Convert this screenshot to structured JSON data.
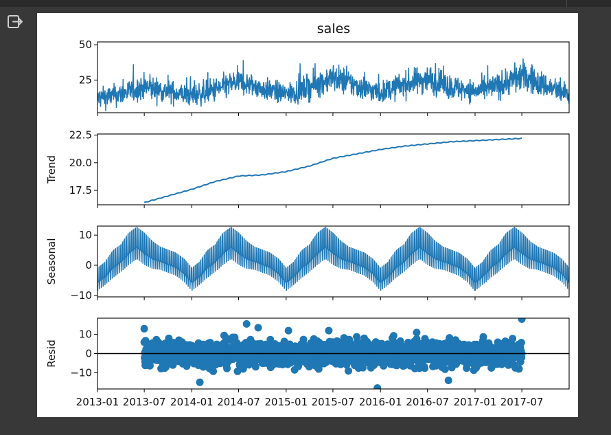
{
  "output_icon": "output-collapse-icon",
  "chart_data": {
    "type": "line",
    "title": "sales",
    "x_tick_labels": [
      "2013-01",
      "2013-07",
      "2014-01",
      "2014-07",
      "2015-01",
      "2015-07",
      "2016-01",
      "2016-07",
      "2017-01",
      "2017-07"
    ],
    "x_range": [
      "2013-01-01",
      "2017-12-31"
    ],
    "line_color": "#1f77b4",
    "grid": false,
    "panels": [
      {
        "key": "observed",
        "type": "line",
        "ylabel": "",
        "ylim": [
          2,
          52
        ],
        "yticks": [
          25,
          50
        ],
        "ytick_labels": [
          "25",
          "50"
        ],
        "series": [
          {
            "x": [
              "2013-01",
              "2013-04",
              "2013-07",
              "2013-10",
              "2014-01",
              "2014-04",
              "2014-07",
              "2014-10",
              "2015-01",
              "2015-04",
              "2015-07",
              "2015-10",
              "2016-01",
              "2016-04",
              "2016-07",
              "2016-10",
              "2017-01",
              "2017-04",
              "2017-07",
              "2017-10",
              "2017-12"
            ],
            "y": [
              12,
              15,
              20,
              17,
              14,
              18,
              24,
              19,
              15,
              20,
              27,
              21,
              16,
              22,
              26,
              20,
              17,
              21,
              28,
              21,
              16
            ],
            "spread": [
              7,
              7,
              8,
              7,
              7,
              8,
              8,
              7,
              7,
              8,
              9,
              8,
              7,
              8,
              9,
              8,
              7,
              8,
              10,
              8,
              7
            ]
          }
        ]
      },
      {
        "key": "trend",
        "type": "line",
        "ylabel": "Trend",
        "ylim": [
          16.2,
          22.6
        ],
        "yticks": [
          17.5,
          20.0,
          22.5
        ],
        "ytick_labels": [
          "17.5",
          "20.0",
          "22.5"
        ],
        "series": [
          {
            "x": [
              "2013-07-01",
              "2013-10-01",
              "2014-01-01",
              "2014-04-01",
              "2014-07-01",
              "2014-10-01",
              "2015-01-01",
              "2015-04-01",
              "2015-07-01",
              "2015-10-01",
              "2016-01-01",
              "2016-04-01",
              "2016-07-01",
              "2016-10-01",
              "2017-01-01",
              "2017-04-01",
              "2017-07-01"
            ],
            "y": [
              16.4,
              17.0,
              17.6,
              18.3,
              18.8,
              18.9,
              19.2,
              19.7,
              20.4,
              20.8,
              21.2,
              21.5,
              21.7,
              21.9,
              22.0,
              22.1,
              22.2
            ]
          }
        ]
      },
      {
        "key": "seasonal",
        "type": "line",
        "ylabel": "Seasonal",
        "ylim": [
          -10.5,
          13
        ],
        "yticks": [
          -10,
          0,
          10
        ],
        "ytick_labels": [
          "−10",
          "0",
          "10"
        ],
        "series": [
          {
            "x_unit": "day_of_year",
            "x": [
              0,
              30,
              60,
              91,
              121,
              152,
              182,
              213,
              243,
              274,
              304,
              335,
              365
            ],
            "y": [
              -5,
              -3,
              0,
              2,
              5,
              7,
              5,
              3,
              2,
              1,
              0,
              -2,
              -5
            ],
            "spread": [
              5,
              5,
              6,
              6,
              7,
              7,
              7,
              6,
              5,
              5,
              5,
              5,
              5
            ]
          }
        ]
      },
      {
        "key": "resid",
        "type": "scatter",
        "ylabel": "Resid",
        "ylim": [
          -18.5,
          18.5
        ],
        "yticks": [
          -10,
          0,
          10
        ],
        "ytick_labels": [
          "−10",
          "0",
          "10"
        ],
        "zero_line": true,
        "range": [
          "2013-07-01",
          "2017-07-01"
        ],
        "typical_spread": [
          -9,
          9
        ],
        "outliers": [
          {
            "x": "2013-07-01",
            "y": 13
          },
          {
            "x": "2014-02-01",
            "y": -15
          },
          {
            "x": "2014-08-01",
            "y": 15.5
          },
          {
            "x": "2014-09-15",
            "y": 13.5
          },
          {
            "x": "2015-01-10",
            "y": 12
          },
          {
            "x": "2015-06-15",
            "y": 12
          },
          {
            "x": "2015-12-20",
            "y": -18
          },
          {
            "x": "2016-05-20",
            "y": 11
          },
          {
            "x": "2016-09-20",
            "y": -14
          },
          {
            "x": "2017-07-01",
            "y": 18
          }
        ]
      }
    ]
  }
}
